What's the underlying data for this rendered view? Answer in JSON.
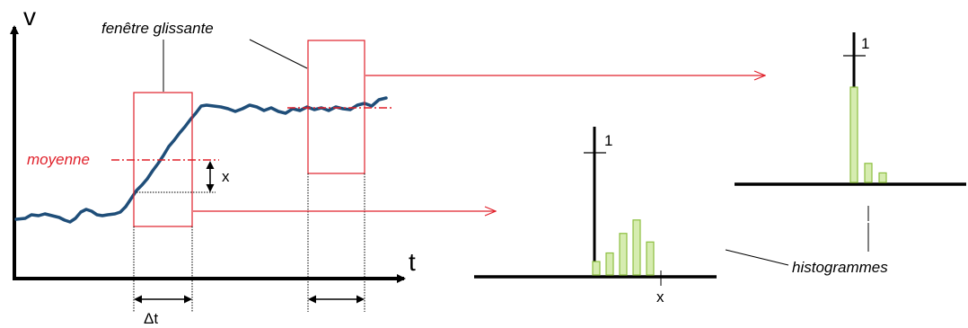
{
  "labels": {
    "v_axis": "v",
    "t_axis": "t",
    "sliding_window": "fenêtre glissante",
    "mean": "moyenne",
    "x_offset": "x",
    "delta_t": "Δt",
    "histograms": "histogrammes",
    "hist1_unit": "1",
    "hist1_x": "x",
    "hist2_unit": "1"
  },
  "colors": {
    "signal": "#1f4e79",
    "window": "#e0202a",
    "mean": "#e0202a",
    "arrow": "#e0202a",
    "bar_fill": "#d6ecb0",
    "bar_stroke": "#8cbf3f",
    "axis": "#000000"
  },
  "histograms": [
    {
      "name": "histogram-1",
      "relative_heights": [
        0.11,
        0.18,
        0.34,
        0.45,
        0.27
      ]
    },
    {
      "name": "histogram-2",
      "relative_heights": [
        1.0,
        0.2,
        0.1
      ]
    }
  ]
}
